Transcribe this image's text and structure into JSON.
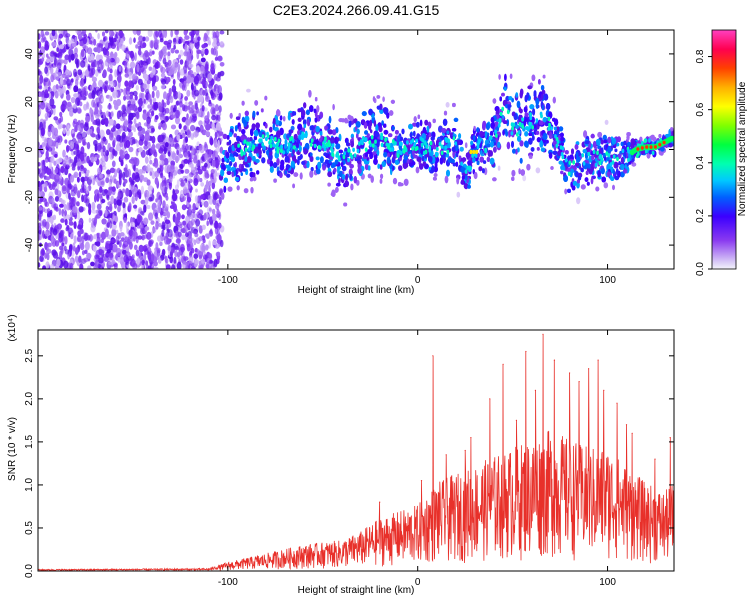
{
  "title": "C2E3.2024.266.09.41.G15",
  "chart_data": [
    {
      "type": "heatmap",
      "xlabel": "Height of straight line (km)",
      "ylabel": "Frequency (Hz)",
      "xlim": [
        -200,
        135
      ],
      "ylim": [
        -50,
        50
      ],
      "xticks": [
        -100,
        0,
        100
      ],
      "xtick_labels": [
        "-100",
        "0",
        "100"
      ],
      "yticks": [
        -40,
        -20,
        0,
        20,
        40
      ],
      "ytick_labels": [
        "-40",
        "-20",
        "0",
        "20",
        "40"
      ],
      "noise_region_x": [
        -200,
        -103
      ],
      "ridge": {
        "x": [
          -103,
          -90,
          -80,
          -70,
          -60,
          -50,
          -40,
          -30,
          -20,
          -10,
          0,
          10,
          20,
          25,
          30,
          40,
          45,
          50,
          60,
          65,
          70,
          80,
          90,
          100,
          110,
          115,
          120,
          125,
          135
        ],
        "center": [
          -5,
          2,
          5,
          0,
          6,
          3,
          -4,
          2,
          4,
          0,
          2,
          0,
          3,
          -12,
          0,
          3,
          20,
          8,
          12,
          15,
          10,
          -8,
          -4,
          -4,
          -3,
          0,
          1,
          1,
          5
        ],
        "spread": [
          12,
          14,
          12,
          12,
          14,
          12,
          14,
          12,
          14,
          12,
          10,
          10,
          12,
          10,
          8,
          12,
          14,
          14,
          14,
          14,
          12,
          10,
          10,
          9,
          7,
          4,
          3,
          3,
          3
        ]
      }
    },
    {
      "type": "line",
      "xlabel": "Height of straight line (km)",
      "ylabel": "SNR (10 * v/v)",
      "ylabel_exponent": "(x10⁴)",
      "xlim": [
        -200,
        135
      ],
      "ylim": [
        0,
        2.8
      ],
      "xticks": [
        -100,
        0,
        100
      ],
      "xtick_labels": [
        "-100",
        "0",
        "100"
      ],
      "yticks": [
        0,
        0.5,
        1.0,
        1.5,
        2.0,
        2.5
      ],
      "ytick_labels": [
        "0.0",
        "0.5",
        "1.0",
        "1.5",
        "2.0",
        "2.5"
      ],
      "envelope": {
        "x": [
          -200,
          -110,
          -100,
          -80,
          -60,
          -40,
          -30,
          -20,
          0,
          10,
          20,
          40,
          60,
          70,
          80,
          90,
          100,
          110,
          120,
          130,
          135
        ],
        "top": [
          0.02,
          0.03,
          0.1,
          0.2,
          0.3,
          0.35,
          0.45,
          0.6,
          0.75,
          1.0,
          1.1,
          1.3,
          1.5,
          1.6,
          1.5,
          1.4,
          1.4,
          1.2,
          1.0,
          0.9,
          1.0
        ]
      },
      "peaks": [
        {
          "x": -20,
          "y": 0.8
        },
        {
          "x": 2,
          "y": 1.05
        },
        {
          "x": 8,
          "y": 2.5
        },
        {
          "x": 15,
          "y": 1.35
        },
        {
          "x": 25,
          "y": 1.4
        },
        {
          "x": 28,
          "y": 1.55
        },
        {
          "x": 38,
          "y": 2.0
        },
        {
          "x": 45,
          "y": 2.4
        },
        {
          "x": 52,
          "y": 1.75
        },
        {
          "x": 57,
          "y": 2.55
        },
        {
          "x": 62,
          "y": 2.1
        },
        {
          "x": 66,
          "y": 2.75
        },
        {
          "x": 72,
          "y": 2.45
        },
        {
          "x": 80,
          "y": 2.3
        },
        {
          "x": 85,
          "y": 2.2
        },
        {
          "x": 90,
          "y": 2.35
        },
        {
          "x": 95,
          "y": 2.45
        },
        {
          "x": 98,
          "y": 2.1
        },
        {
          "x": 105,
          "y": 1.95
        },
        {
          "x": 110,
          "y": 1.7
        },
        {
          "x": 113,
          "y": 1.6
        },
        {
          "x": 125,
          "y": 1.3
        },
        {
          "x": 133,
          "y": 1.55
        }
      ],
      "series": [
        {
          "color": "#e8302a"
        }
      ]
    },
    {
      "type": "colorbar",
      "label": "Normalized spectral amplitude",
      "range": [
        0.0,
        0.9
      ],
      "ticks": [
        0.0,
        0.2,
        0.4,
        0.6,
        0.8
      ],
      "tick_labels": [
        "0.0",
        "0.2",
        "0.4",
        "0.6",
        "0.8"
      ]
    }
  ]
}
